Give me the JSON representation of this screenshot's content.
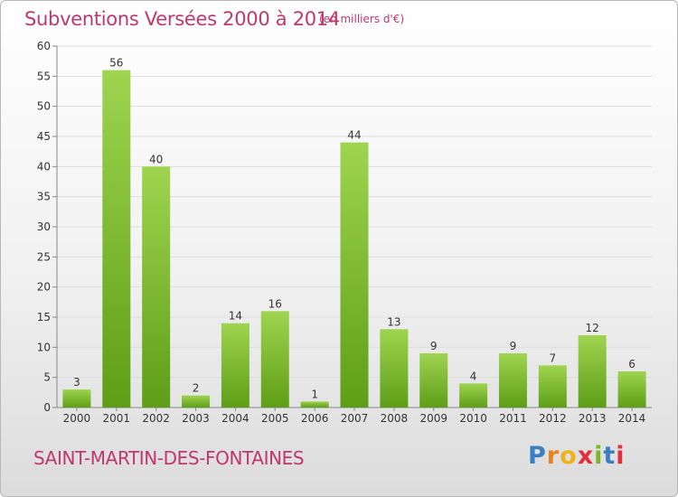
{
  "header": {
    "title": "Subventions Versées 2000 à 2014",
    "unit": "(en milliers d'€)"
  },
  "footer": {
    "commune": "SAINT-MARTIN-DES-FONTAINES",
    "logo_text": "Proxiti"
  },
  "colors": {
    "title": "#c0386b",
    "bar_light": "#9fd44f",
    "bar_dark": "#5e9e17",
    "logo_letters": [
      "#3a7fc1",
      "#e8821e",
      "#f0b21a",
      "#e0303a",
      "#7bb829",
      "#3a7fc1",
      "#e0303a"
    ]
  },
  "chart_data": {
    "type": "bar",
    "categories": [
      "2000",
      "2001",
      "2002",
      "2003",
      "2004",
      "2005",
      "2006",
      "2007",
      "2008",
      "2009",
      "2010",
      "2011",
      "2012",
      "2013",
      "2014"
    ],
    "values": [
      3,
      56,
      40,
      2,
      14,
      16,
      1,
      44,
      13,
      9,
      4,
      9,
      7,
      12,
      6
    ],
    "ylim": [
      0,
      60
    ],
    "yticks": [
      0,
      5,
      10,
      15,
      20,
      25,
      30,
      35,
      40,
      45,
      50,
      55,
      60
    ],
    "grid": true,
    "data_labels": true
  }
}
